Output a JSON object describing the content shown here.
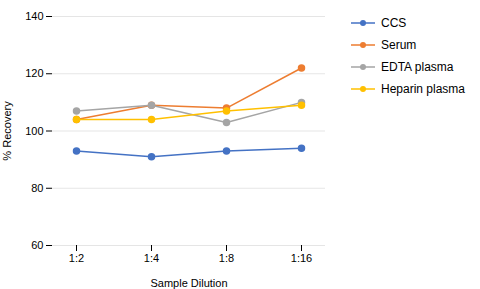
{
  "chart_data": {
    "type": "line",
    "categories": [
      "1:2",
      "1:4",
      "1:8",
      "1:16"
    ],
    "series": [
      {
        "name": "CCS",
        "color": "#4472C4",
        "marker": "circle",
        "values": [
          93,
          91,
          93,
          94
        ]
      },
      {
        "name": "Serum",
        "color": "#ED7D31",
        "marker": "circle",
        "values": [
          104,
          109,
          108,
          122
        ]
      },
      {
        "name": "EDTA plasma",
        "color": "#A5A5A5",
        "marker": "circle",
        "values": [
          107,
          109,
          103,
          110
        ]
      },
      {
        "name": "Heparin plasma",
        "color": "#FFC000",
        "marker": "circle",
        "values": [
          104,
          104,
          107,
          109
        ]
      }
    ],
    "xlabel": "Sample Dilution",
    "ylabel": "% Recovery",
    "ylim": [
      60,
      140
    ],
    "yticks": [
      60,
      80,
      100,
      120,
      140
    ],
    "grid": "y",
    "legend": "right"
  }
}
